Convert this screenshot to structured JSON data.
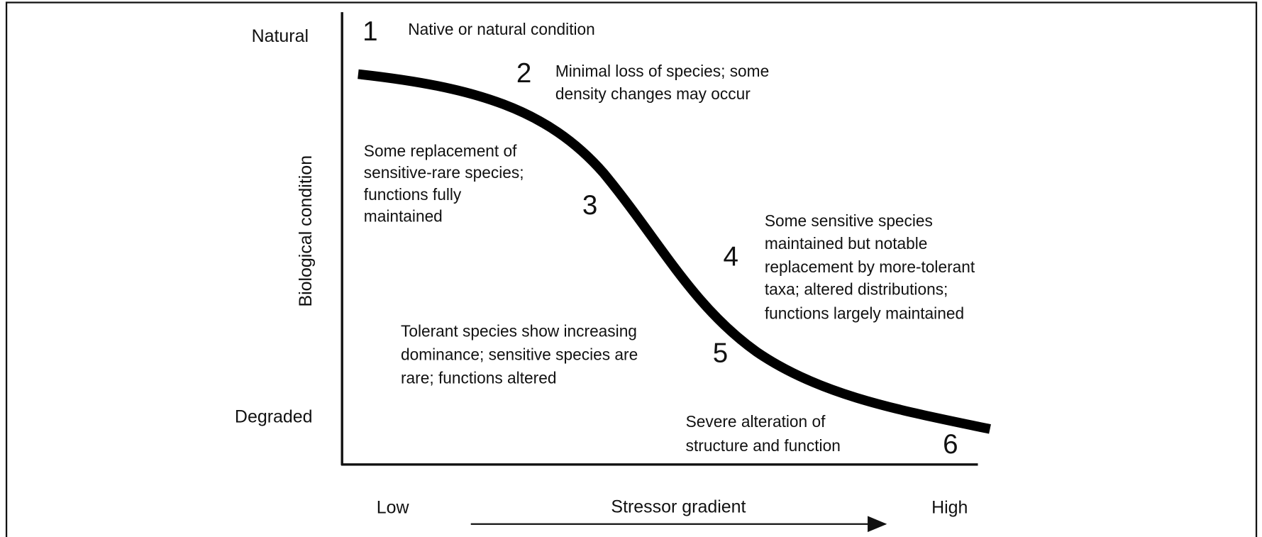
{
  "y_axis": {
    "title": "Biological condition",
    "top_label": "Natural",
    "bottom_label": "Degraded"
  },
  "x_axis": {
    "title": "Stressor gradient",
    "low_label": "Low",
    "high_label": "High"
  },
  "levels": [
    {
      "number": "1",
      "lines": [
        "Native or natural condition"
      ]
    },
    {
      "number": "2",
      "lines": [
        "Minimal loss of species; some",
        "density changes may occur"
      ]
    },
    {
      "number": "3",
      "lines": [
        "Some replacement  of",
        "sensitive-rare species;",
        "functions fully",
        "maintained"
      ]
    },
    {
      "number": "4",
      "lines": [
        "Some sensitive species",
        "maintained but notable",
        "replacement by more-tolerant",
        "taxa; altered distributions;",
        "functions largely maintained"
      ]
    },
    {
      "number": "5",
      "lines": [
        "Tolerant species show increasing",
        "dominance; sensitive species are",
        "rare; functions altered"
      ]
    },
    {
      "number": "6",
      "lines": [
        "Severe alteration of",
        "structure and function"
      ]
    }
  ]
}
